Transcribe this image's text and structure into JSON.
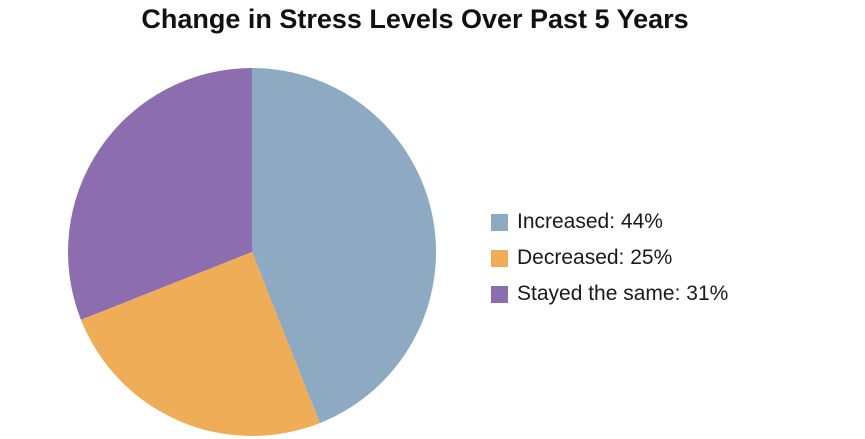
{
  "chart_data": {
    "type": "pie",
    "title": "Change in Stress Levels Over Past 5 Years",
    "slices": [
      {
        "label": "Increased",
        "value": 44,
        "color": "#8ea9c2",
        "legend_text": "Increased: 44%"
      },
      {
        "label": "Decreased",
        "value": 25,
        "color": "#efad57",
        "legend_text": "Decreased: 25%"
      },
      {
        "label": "Stayed the same",
        "value": 31,
        "color": "#8c6db0",
        "legend_text": "Stayed the same: 31%"
      }
    ],
    "legend_placement": "right",
    "start_angle": "12 o'clock, clockwise"
  }
}
